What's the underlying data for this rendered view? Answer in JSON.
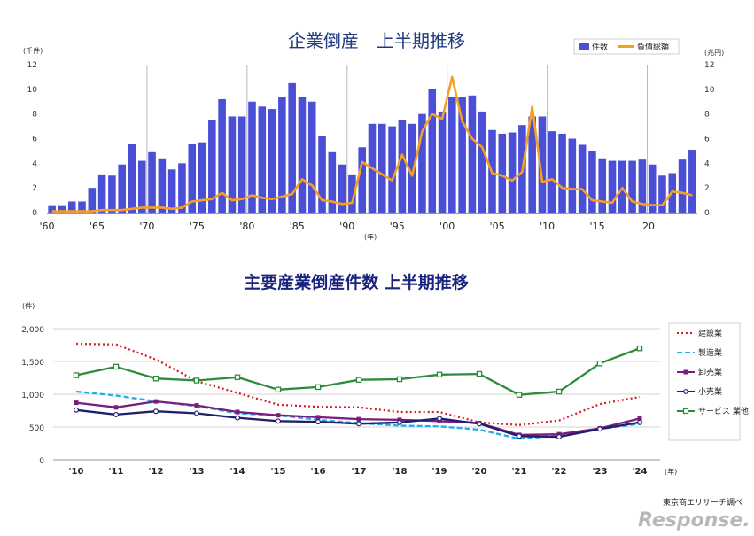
{
  "chart_data": [
    {
      "type": "bar",
      "title": "企業倒産　上半期推移",
      "y_unit_left": "(千件)",
      "y_unit_right": "(兆円)",
      "x_unit": "(年)",
      "ylim": [
        0,
        12
      ],
      "y_ticks": [
        "0",
        "2",
        "4",
        "6",
        "8",
        "10",
        "12"
      ],
      "x_start": 1960,
      "x_tick_labels": [
        "'60",
        "'65",
        "'70",
        "'75",
        "'80",
        "'85",
        "'90",
        "'95",
        "'00",
        "'05",
        "'10",
        "'15",
        "'20"
      ],
      "grid_x": true,
      "legend_placement": "top-right",
      "series": [
        {
          "name": "件数",
          "kind": "bar",
          "color": "#4a4fd6",
          "values": [
            0.6,
            0.6,
            0.9,
            0.9,
            2.0,
            3.1,
            3.0,
            3.9,
            5.6,
            4.2,
            4.9,
            4.4,
            3.5,
            4.0,
            5.6,
            5.7,
            7.5,
            9.2,
            7.8,
            7.8,
            9.0,
            8.6,
            8.4,
            9.4,
            10.5,
            9.4,
            9.0,
            6.2,
            4.9,
            3.9,
            3.1,
            5.3,
            7.2,
            7.2,
            7.0,
            7.5,
            7.2,
            8.0,
            10.0,
            8.2,
            9.4,
            9.4,
            9.5,
            8.2,
            6.7,
            6.4,
            6.5,
            7.1,
            7.8,
            7.8,
            6.6,
            6.4,
            6.0,
            5.5,
            5.0,
            4.4,
            4.2,
            4.2,
            4.2,
            4.3,
            3.9,
            3.0,
            3.2,
            4.3,
            5.1
          ]
        },
        {
          "name": "負債総額",
          "kind": "line",
          "color": "#f5a023",
          "values": [
            0.1,
            0.1,
            0.1,
            0.1,
            0.1,
            0.2,
            0.2,
            0.2,
            0.3,
            0.4,
            0.4,
            0.4,
            0.3,
            0.4,
            0.9,
            1.0,
            1.1,
            1.6,
            1.0,
            1.1,
            1.4,
            1.2,
            1.1,
            1.3,
            1.5,
            2.7,
            2.2,
            1.0,
            0.9,
            0.7,
            0.8,
            4.1,
            3.6,
            3.1,
            2.6,
            4.7,
            3.0,
            6.6,
            8.0,
            7.6,
            11.0,
            7.4,
            6.0,
            5.3,
            3.2,
            3.0,
            2.6,
            3.3,
            8.6,
            2.5,
            2.7,
            2.0,
            1.9,
            1.9,
            1.0,
            0.9,
            0.8,
            2.0,
            0.9,
            0.7,
            0.6,
            0.6,
            1.7,
            1.6,
            1.4
          ]
        }
      ]
    },
    {
      "type": "line",
      "title": "主要産業倒産件数 上半期推移",
      "y_unit": "(件)",
      "x_unit": "(年)",
      "ylim": [
        0,
        2000
      ],
      "y_ticks": [
        "0",
        "500",
        "1,000",
        "1,500",
        "2,000"
      ],
      "categories": [
        "'10",
        "'11",
        "'12",
        "'13",
        "'14",
        "'15",
        "'16",
        "'17",
        "'18",
        "'19",
        "'20",
        "'21",
        "'22",
        "'23",
        "'24"
      ],
      "legend_placement": "right",
      "series": [
        {
          "name": "建設業",
          "color": "#d5202a",
          "dash": "dotted",
          "marker": "none",
          "values": [
            1770,
            1760,
            1530,
            1200,
            1020,
            840,
            810,
            800,
            730,
            730,
            570,
            530,
            600,
            850,
            960
          ]
        },
        {
          "name": "製造業",
          "color": "#22aee6",
          "dash": "dashed",
          "marker": "none",
          "values": [
            1040,
            980,
            890,
            820,
            710,
            680,
            610,
            560,
            520,
            510,
            460,
            320,
            370,
            470,
            550
          ]
        },
        {
          "name": "卸売業",
          "color": "#7b1d7e",
          "dash": "solid",
          "marker": "square",
          "values": [
            870,
            800,
            890,
            830,
            730,
            680,
            650,
            620,
            610,
            590,
            560,
            380,
            390,
            480,
            630
          ]
        },
        {
          "name": "小売業",
          "color": "#1f1f6e",
          "dash": "solid",
          "marker": "circle",
          "values": [
            760,
            690,
            740,
            710,
            640,
            590,
            580,
            550,
            570,
            630,
            550,
            360,
            350,
            470,
            570
          ]
        },
        {
          "name": "サービス 業他",
          "color": "#2e8b3b",
          "dash": "solid",
          "marker": "square-open",
          "values": [
            1290,
            1420,
            1240,
            1210,
            1260,
            1070,
            1110,
            1220,
            1230,
            1300,
            1310,
            990,
            1040,
            1470,
            1700
          ]
        }
      ]
    }
  ],
  "source": "東京商エリサーチ調べ",
  "watermark": "Response."
}
